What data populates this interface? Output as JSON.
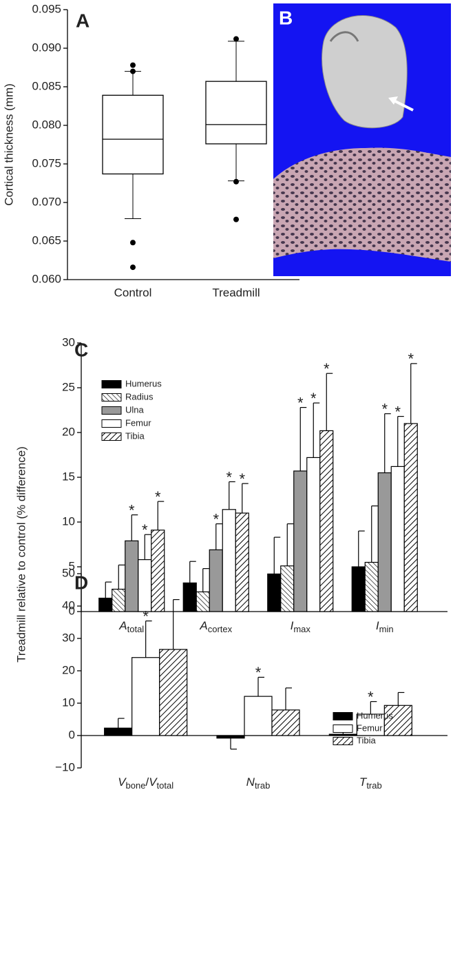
{
  "shared_ylabel": "Treadmill relative to control (% difference)",
  "panel_b": {
    "label": "B"
  },
  "chart_data": [
    {
      "type": "box",
      "panel_label": "A",
      "ylabel": "Cortical thickness (mm)",
      "categories": [
        "Control",
        "Treadmill"
      ],
      "boxes": [
        {
          "whisker_low": 0.0679,
          "q1": 0.0737,
          "median": 0.0782,
          "q3": 0.0839,
          "whisker_high": 0.087,
          "outliers": [
            0.0616,
            0.0648,
            0.087,
            0.0878
          ]
        },
        {
          "whisker_low": 0.0728,
          "q1": 0.0776,
          "median": 0.0801,
          "q3": 0.0857,
          "whisker_high": 0.0909,
          "outliers": [
            0.0678,
            0.0727,
            0.0912
          ]
        }
      ],
      "ylim": [
        0.06,
        0.095
      ],
      "yticks": [
        {
          "value": 0.06,
          "label": "0.060"
        },
        0.065,
        {
          "value": 0.07,
          "label": "0.070"
        },
        0.075,
        {
          "value": 0.08,
          "label": "0.080"
        },
        0.085,
        {
          "value": 0.09,
          "label": "0.090"
        },
        0.095
      ]
    },
    {
      "type": "bar",
      "panel_label": "C",
      "legend": "upper left",
      "categories": [
        [
          {
            "main": "A",
            "sub": "total"
          }
        ],
        [
          {
            "main": "A",
            "sub": "cortex"
          }
        ],
        [
          {
            "main": "I",
            "sub": "max"
          }
        ],
        [
          {
            "main": "I",
            "sub": "min"
          }
        ]
      ],
      "series": [
        {
          "name": "Humerus",
          "color": "#000000",
          "pattern": "solid",
          "values": [
            1.5,
            3.2,
            4.2,
            5.0
          ],
          "errors": [
            1.8,
            2.4,
            4.1,
            4.0
          ],
          "significance": [
            null,
            null,
            null,
            null
          ]
        },
        {
          "name": "Radius",
          "color": "#ffffff",
          "pattern": "back-diagonal",
          "values": [
            2.5,
            2.2,
            5.1,
            5.5
          ],
          "errors": [
            2.7,
            2.6,
            4.7,
            6.3
          ],
          "significance": [
            null,
            null,
            null,
            null
          ]
        },
        {
          "name": "Ulna",
          "color": "#999999",
          "pattern": "solid",
          "values": [
            7.9,
            6.9,
            15.7,
            15.5
          ],
          "errors": [
            2.9,
            2.9,
            7.1,
            6.6
          ],
          "significance": [
            "*",
            "*",
            "*",
            "*"
          ]
        },
        {
          "name": "Femur",
          "color": "#ffffff",
          "pattern": "solid",
          "values": [
            5.8,
            11.4,
            17.2,
            16.2
          ],
          "errors": [
            2.8,
            3.1,
            6.1,
            5.6
          ],
          "significance": [
            "*",
            "*",
            "*",
            "*"
          ]
        },
        {
          "name": "Tibia",
          "color": "#ffffff",
          "pattern": "diagonal",
          "values": [
            9.1,
            11.0,
            20.2,
            21.0
          ],
          "errors": [
            3.2,
            3.3,
            6.4,
            6.7
          ],
          "significance": [
            "*",
            "*",
            "*",
            "*"
          ]
        }
      ],
      "ylim": [
        0,
        30
      ],
      "yticks": [
        0,
        5,
        10,
        15,
        20,
        25,
        30
      ]
    },
    {
      "type": "bar",
      "panel_label": "D",
      "legend": "center right",
      "categories": [
        [
          {
            "main": "V",
            "sub": "bone"
          },
          {
            "plain": "/"
          },
          {
            "main": "V",
            "sub": "total"
          }
        ],
        [
          {
            "main": "N",
            "sub": "trab"
          }
        ],
        [
          {
            "main": "T",
            "sub": "trab"
          }
        ]
      ],
      "series": [
        {
          "name": "Humerus",
          "color": "#000000",
          "pattern": "solid",
          "values": [
            2.3,
            -0.8,
            0.4
          ],
          "errors": [
            3.0,
            3.4,
            2.1
          ],
          "significance": [
            null,
            null,
            null
          ]
        },
        {
          "name": "Femur",
          "color": "#ffffff",
          "pattern": "solid",
          "values": [
            24.1,
            12.1,
            6.6
          ],
          "errors": [
            11.3,
            5.9,
            3.9
          ],
          "significance": [
            "*",
            "*",
            "*"
          ]
        },
        {
          "name": "Tibia",
          "color": "#ffffff",
          "pattern": "diagonal",
          "values": [
            26.6,
            7.9,
            9.3
          ],
          "errors": [
            15.4,
            6.8,
            4.0
          ],
          "significance": [
            null,
            null,
            null
          ]
        }
      ],
      "ylim": [
        -10,
        50
      ],
      "yticks": [
        {
          "value": -10,
          "label": "−10"
        },
        0,
        10,
        20,
        30,
        40,
        50
      ]
    }
  ]
}
